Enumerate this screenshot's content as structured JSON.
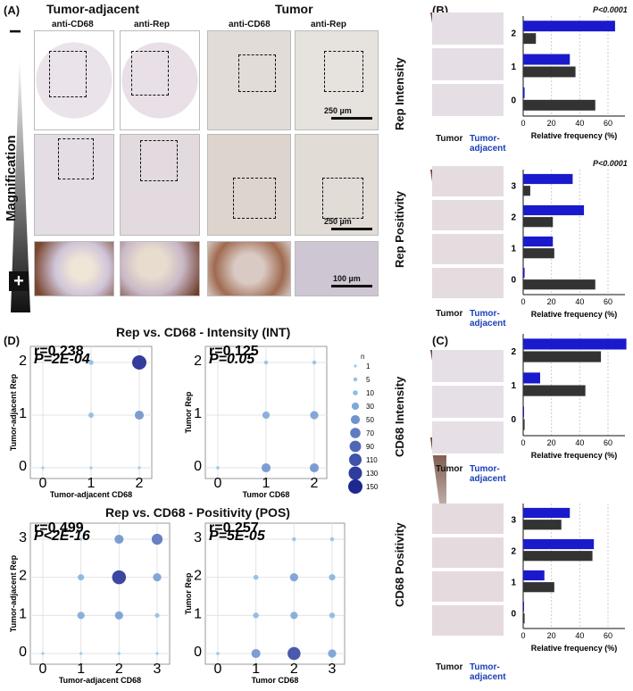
{
  "panel_labels": {
    "A": "(A)",
    "B": "(B)",
    "C": "(C)",
    "D": "(D)"
  },
  "panelA": {
    "group_left": "Tumor-adjacent",
    "group_right": "Tumor",
    "col_labels": [
      "anti-CD68",
      "anti-Rep",
      "anti-CD68",
      "anti-Rep"
    ],
    "magnification": "Magnification",
    "minus": "−",
    "plus": "+",
    "scale_bars": [
      "250 µm",
      "250 µm",
      "100 µm"
    ]
  },
  "rep_intensity": {
    "ylabel": "Rep Intensity",
    "pvalue": "P<0.0001",
    "tumor_label": "Tumor",
    "adjacent_label": "Tumor-adjacent",
    "colors": {
      "tumor": "#333333",
      "adjacent": "#1a1acc"
    }
  },
  "rep_positivity": {
    "ylabel": "Rep Positivity",
    "pvalue": "P<0.0001",
    "tumor_label": "Tumor",
    "adjacent_label": "Tumor-adjacent"
  },
  "cd68_intensity": {
    "ylabel": "CD68 Intensity",
    "tumor_label": "Tumor",
    "adjacent_label": "Tumor-adjacent"
  },
  "cd68_positivity": {
    "ylabel": "CD68 Positivity",
    "tumor_label": "Tumor",
    "adjacent_label": "Tumor-adjacent"
  },
  "panelD": {
    "title_int": "Rep vs. CD68 - Intensity (INT)",
    "title_pos": "Rep vs. CD68 - Positivity (POS)",
    "stats": [
      {
        "r": "r=0.238",
        "p": "P=2E-04"
      },
      {
        "r": "r=0.125",
        "p": "P=0.05"
      },
      {
        "r": "r=0.499",
        "p": "P<2E-16"
      },
      {
        "r": "r=0.257",
        "p": "P=5E-05"
      }
    ],
    "size_legend_title": "n",
    "size_legend": [
      1,
      5,
      10,
      30,
      50,
      70,
      90,
      110,
      130,
      150
    ]
  },
  "chart_data": [
    {
      "type": "bar",
      "name": "Rep Intensity",
      "xlabel": "Relative frequency (%)",
      "categories": [
        "2",
        "1",
        "0"
      ],
      "xticks": [
        0,
        20,
        40,
        60
      ],
      "xlim": [
        0,
        72
      ],
      "series": [
        {
          "name": "Tumor-adjacent",
          "color": "#1a1acc",
          "values": [
            65,
            33,
            1
          ]
        },
        {
          "name": "Tumor",
          "color": "#333333",
          "values": [
            9,
            37,
            51
          ]
        }
      ]
    },
    {
      "type": "bar",
      "name": "Rep Positivity",
      "xlabel": "Relative frequency (%)",
      "categories": [
        "3",
        "2",
        "1",
        "0"
      ],
      "xticks": [
        0,
        20,
        40,
        60
      ],
      "xlim": [
        0,
        72
      ],
      "series": [
        {
          "name": "Tumor-adjacent",
          "color": "#1a1acc",
          "values": [
            35,
            43,
            21,
            1
          ]
        },
        {
          "name": "Tumor",
          "color": "#333333",
          "values": [
            5,
            21,
            22,
            51
          ]
        }
      ]
    },
    {
      "type": "bar",
      "name": "CD68 Intensity",
      "xlabel": "Relative frequency (%)",
      "categories": [
        "2",
        "1",
        "0"
      ],
      "xticks": [
        0,
        20,
        40,
        60
      ],
      "xlim": [
        0,
        72
      ],
      "series": [
        {
          "name": "Tumor-adjacent",
          "color": "#1a1acc",
          "values": [
            73,
            12,
            0
          ]
        },
        {
          "name": "Tumor",
          "color": "#333333",
          "values": [
            55,
            44,
            1
          ]
        }
      ]
    },
    {
      "type": "bar",
      "name": "CD68 Positivity",
      "xlabel": "Relative frequency (%)",
      "categories": [
        "3",
        "2",
        "1",
        "0"
      ],
      "xticks": [
        0,
        20,
        40,
        60
      ],
      "xlim": [
        0,
        72
      ],
      "series": [
        {
          "name": "Tumor-adjacent",
          "color": "#1a1acc",
          "values": [
            33,
            50,
            15,
            0
          ]
        },
        {
          "name": "Tumor",
          "color": "#333333",
          "values": [
            27,
            49,
            22,
            1
          ]
        }
      ]
    },
    {
      "type": "scatter",
      "xlabel": "Tumor-adjacent CD68",
      "ylabel": "Tumor-adjacent Rep",
      "xticks": [
        0,
        1,
        2
      ],
      "yticks": [
        0,
        1,
        2
      ],
      "points": [
        [
          1,
          2,
          10
        ],
        [
          2,
          2,
          150
        ],
        [
          1,
          1,
          12
        ],
        [
          2,
          1,
          50
        ],
        [
          0,
          0,
          1
        ],
        [
          1,
          0,
          1
        ],
        [
          2,
          0,
          1
        ]
      ]
    },
    {
      "type": "scatter",
      "xlabel": "Tumor CD68",
      "ylabel": "Tumor Rep",
      "xticks": [
        0,
        1,
        2
      ],
      "yticks": [
        0,
        1,
        2
      ],
      "points": [
        [
          1,
          2,
          5
        ],
        [
          2,
          2,
          5
        ],
        [
          1,
          1,
          30
        ],
        [
          2,
          1,
          40
        ],
        [
          0,
          0,
          2
        ],
        [
          1,
          0,
          50
        ],
        [
          2,
          0,
          50
        ]
      ]
    },
    {
      "type": "scatter",
      "xlabel": "Tumor-adjacent CD68",
      "ylabel": "Tumor-adjacent Rep",
      "xticks": [
        0,
        1,
        2,
        3
      ],
      "yticks": [
        0,
        1,
        2,
        3
      ],
      "points": [
        [
          1,
          3,
          1
        ],
        [
          2,
          3,
          50
        ],
        [
          3,
          3,
          80
        ],
        [
          1,
          2,
          20
        ],
        [
          2,
          2,
          140
        ],
        [
          3,
          2,
          40
        ],
        [
          1,
          1,
          30
        ],
        [
          2,
          1,
          40
        ],
        [
          3,
          1,
          8
        ],
        [
          0,
          0,
          1
        ],
        [
          1,
          0,
          1
        ],
        [
          2,
          0,
          1
        ],
        [
          3,
          0,
          1
        ]
      ]
    },
    {
      "type": "scatter",
      "xlabel": "Tumor CD68",
      "ylabel": "Tumor Rep",
      "xticks": [
        0,
        1,
        2,
        3
      ],
      "yticks": [
        0,
        1,
        2,
        3
      ],
      "points": [
        [
          2,
          3,
          5
        ],
        [
          3,
          3,
          5
        ],
        [
          1,
          2,
          10
        ],
        [
          2,
          2,
          40
        ],
        [
          3,
          2,
          20
        ],
        [
          1,
          1,
          15
        ],
        [
          2,
          1,
          30
        ],
        [
          3,
          1,
          15
        ],
        [
          0,
          0,
          2
        ],
        [
          1,
          0,
          50
        ],
        [
          2,
          0,
          120
        ],
        [
          3,
          0,
          40
        ]
      ]
    }
  ]
}
